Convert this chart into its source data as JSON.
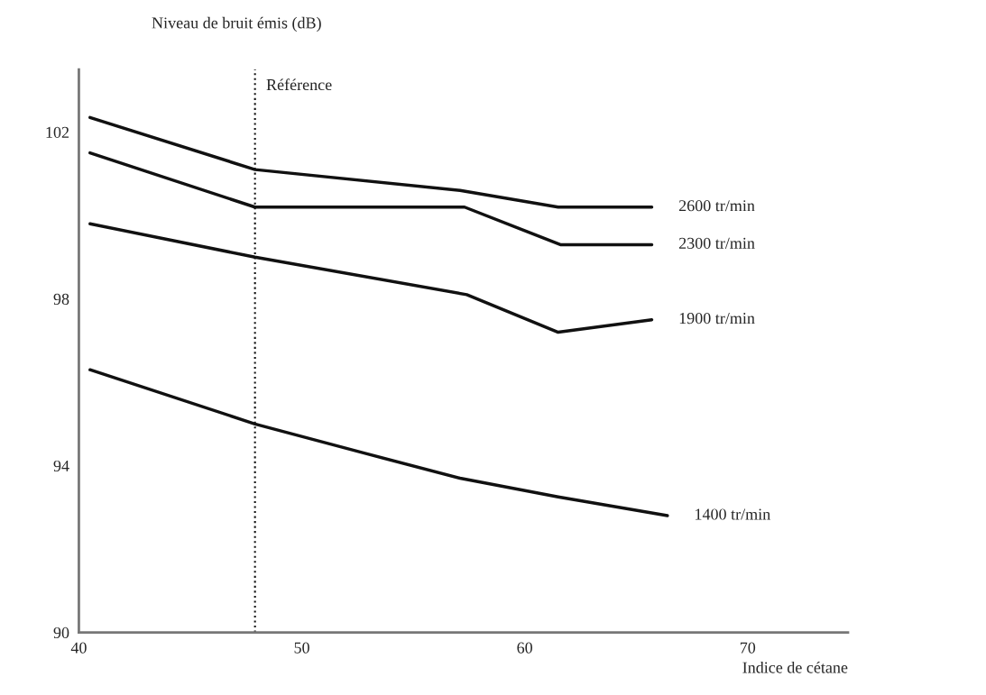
{
  "chart_data": {
    "type": "line",
    "xlabel": "Indice de cétane",
    "ylabel": "Niveau de bruit émis (dB)",
    "xlim": [
      40,
      74.5
    ],
    "ylim": [
      90,
      103.5
    ],
    "xticks": [
      40,
      50,
      60,
      70
    ],
    "yticks": [
      90,
      94,
      98,
      102
    ],
    "grid": false,
    "legend": false,
    "marker": "none",
    "line_style": "solid",
    "series": [
      {
        "name": "2600 tr/min",
        "color": "#111111",
        "x": [
          40.5,
          47.9,
          57.1,
          61.5,
          65.7
        ],
        "values": [
          102.35,
          101.1,
          100.6,
          100.2,
          100.2
        ]
      },
      {
        "name": "2300 tr/min",
        "color": "#111111",
        "x": [
          40.5,
          47.9,
          57.3,
          61.6,
          65.7
        ],
        "values": [
          101.5,
          100.2,
          100.2,
          99.3,
          99.3
        ]
      },
      {
        "name": "1900 tr/min",
        "color": "#111111",
        "x": [
          40.5,
          47.9,
          57.4,
          61.5,
          65.7
        ],
        "values": [
          99.8,
          99.0,
          98.1,
          97.2,
          97.5
        ]
      },
      {
        "name": "1400 tr/min",
        "color": "#111111",
        "x": [
          40.5,
          47.9,
          52.8,
          57.1,
          61.5,
          66.4
        ],
        "values": [
          96.3,
          95.0,
          94.3,
          93.7,
          93.25,
          92.8
        ]
      }
    ],
    "ref_lines": [
      {
        "axis": "x",
        "value": 47.9,
        "label": "Référence",
        "color": "#111111",
        "line_style": "dotted"
      }
    ]
  }
}
